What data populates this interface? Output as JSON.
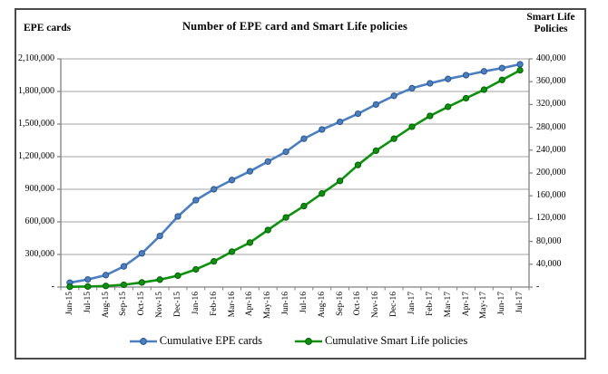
{
  "figure": {
    "title": "Number of EPE card and Smart Life policies",
    "left_axis_title": "EPE cards",
    "right_axis_title_line1": "Smart Life",
    "right_axis_title_line2": "Policies"
  },
  "colors": {
    "blue_series": "#4d7ebf",
    "blue_marker_edge": "#2e5a8f",
    "green_series": "#0f9110",
    "green_marker_edge": "#066306",
    "gridline": "#a3a3a3",
    "axis_line": "#808080",
    "frame_border": "#4a4a4a"
  },
  "chart_data": {
    "type": "line",
    "title": "Number of EPE card and Smart Life policies",
    "grid": "horizontal",
    "legend_position": "bottom",
    "categories": [
      "Jun-15",
      "Jul-15",
      "Aug-15",
      "Sep-15",
      "Oct-15",
      "Nov-15",
      "Dec-15",
      "Jan-16",
      "Feb-16",
      "Mar-16",
      "Apr-16",
      "May-16",
      "Jun-16",
      "Jul-16",
      "Aug-16",
      "Sep-16",
      "Oct-16",
      "Nov-16",
      "Dec-16",
      "Jan-17",
      "Feb-17",
      "Mar-17",
      "Apr-17",
      "May-17",
      "Jun-17",
      "Jul-17"
    ],
    "series": [
      {
        "name": "Cumulative EPE cards",
        "axis": "left",
        "color": "#4d7ebf",
        "marker_edge": "#2e5a8f",
        "values": [
          40000,
          70000,
          110000,
          190000,
          310000,
          470000,
          650000,
          800000,
          900000,
          985000,
          1065000,
          1155000,
          1245000,
          1365000,
          1450000,
          1520000,
          1595000,
          1680000,
          1760000,
          1830000,
          1875000,
          1915000,
          1950000,
          1985000,
          2015000,
          2050000
        ]
      },
      {
        "name": "Cumulative Smart Life policies",
        "axis": "right",
        "color": "#0f9110",
        "marker_edge": "#066306",
        "values": [
          500,
          1000,
          2000,
          4000,
          8000,
          13000,
          20000,
          31000,
          45000,
          62000,
          78000,
          100000,
          122000,
          142000,
          164000,
          186000,
          214000,
          239000,
          260000,
          281000,
          300000,
          316000,
          331000,
          346000,
          363000,
          380000
        ]
      }
    ],
    "left_axis": {
      "title": "EPE cards",
      "min": 0,
      "max": 2100000,
      "tick_interval": 300000,
      "tick_labels": [
        "-",
        "300,000",
        "600,000",
        "900,000",
        "1,200,000",
        "1,500,000",
        "1,800,000",
        "2,100,000"
      ]
    },
    "right_axis": {
      "title": "Smart Life Policies",
      "min": 0,
      "max": 400000,
      "tick_interval": 40000,
      "tick_labels": [
        "-",
        "40,000",
        "80,000",
        "120,000",
        "160,000",
        "200,000",
        "240,000",
        "280,000",
        "320,000",
        "360,000",
        "400,000"
      ]
    }
  }
}
